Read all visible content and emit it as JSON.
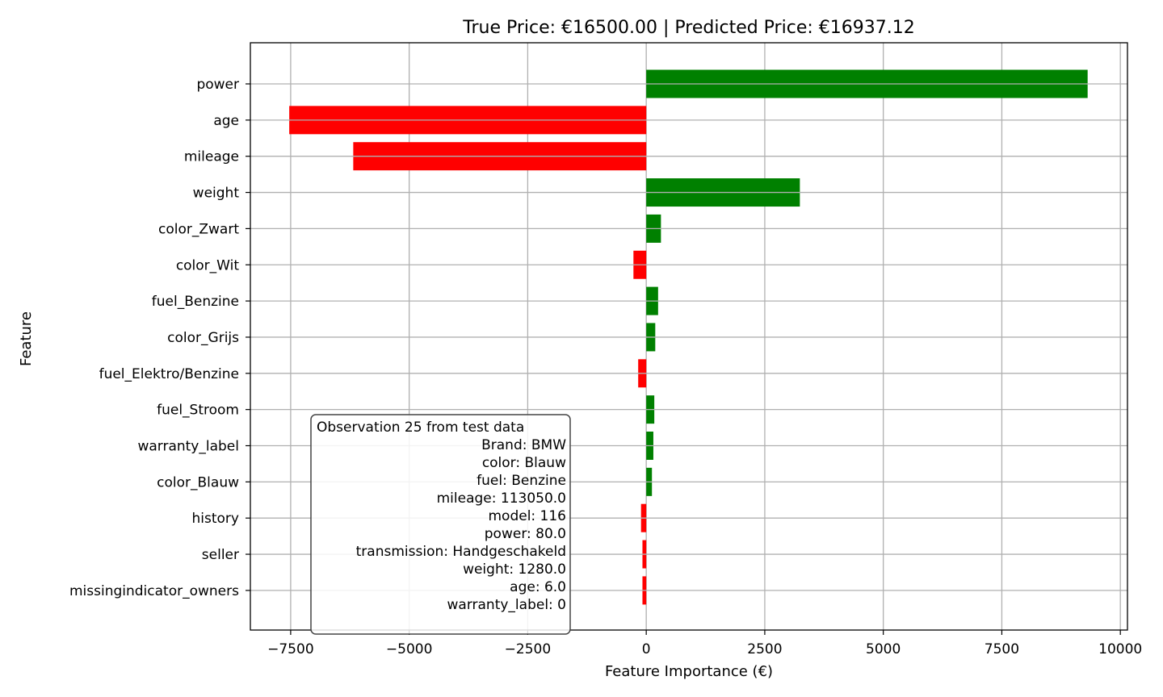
{
  "chart_data": {
    "type": "bar",
    "orientation": "horizontal",
    "title": "True Price: €16500.00 | Predicted Price: €16937.12",
    "xlabel": "Feature Importance (€)",
    "ylabel": "Feature",
    "xlim": [
      -8350,
      10150
    ],
    "xticks": [
      -7500,
      -5000,
      -2500,
      0,
      2500,
      5000,
      7500,
      10000
    ],
    "xtick_labels": [
      "−7500",
      "−5000",
      "−2500",
      "0",
      "2500",
      "5000",
      "7500",
      "10000"
    ],
    "grid": true,
    "positive_color": "#008000",
    "negative_color": "#ff0000",
    "categories": [
      "power",
      "age",
      "mileage",
      "weight",
      "color_Zwart",
      "color_Wit",
      "fuel_Benzine",
      "color_Grijs",
      "fuel_Elektro/Benzine",
      "fuel_Stroom",
      "warranty_label",
      "color_Blauw",
      "history",
      "seller",
      "missingindicator_owners"
    ],
    "values": [
      9310,
      -7530,
      -6180,
      3240,
      310,
      -270,
      250,
      190,
      -170,
      170,
      150,
      120,
      -110,
      -80,
      -80
    ],
    "annotation": {
      "heading": "Observation 25 from test data",
      "lines": [
        "Brand: BMW",
        "color: Blauw",
        "fuel: Benzine",
        "mileage: 113050.0",
        "model: 116",
        "power: 80.0",
        "transmission: Handgeschakeld",
        "weight: 1280.0",
        "age: 6.0",
        "warranty_label: 0"
      ]
    }
  }
}
